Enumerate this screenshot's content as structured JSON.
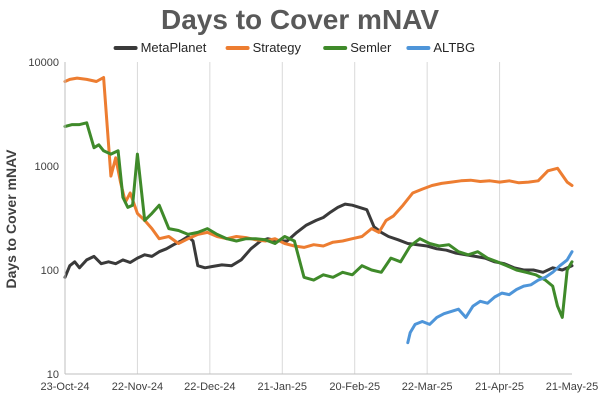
{
  "chart_data": {
    "type": "line",
    "title": "Days to Cover mNAV",
    "ylabel": "Days to Cover mNAV",
    "xlabel": "",
    "yscale": "log",
    "ylim": [
      10,
      10000
    ],
    "y_ticks": [
      "10",
      "100",
      "1000",
      "10000"
    ],
    "x_ticks": [
      "23-Oct-24",
      "22-Nov-24",
      "22-Dec-24",
      "21-Jan-25",
      "20-Feb-25",
      "22-Mar-25",
      "21-Apr-25",
      "21-May-25"
    ],
    "x_start": "2024-10-23",
    "x_end": "2025-05-21",
    "grid": "vertical",
    "legend_position": "top",
    "series": [
      {
        "name": "MetaPlanet",
        "color": "#3a3a3a",
        "x": [
          "2024-10-23",
          "2024-10-25",
          "2024-10-27",
          "2024-10-29",
          "2024-11-01",
          "2024-11-04",
          "2024-11-07",
          "2024-11-10",
          "2024-11-13",
          "2024-11-16",
          "2024-11-19",
          "2024-11-22",
          "2024-11-25",
          "2024-11-28",
          "2024-12-01",
          "2024-12-04",
          "2024-12-07",
          "2024-12-10",
          "2024-12-13",
          "2024-12-15",
          "2024-12-17",
          "2024-12-20",
          "2024-12-23",
          "2024-12-27",
          "2024-12-31",
          "2025-01-04",
          "2025-01-08",
          "2025-01-12",
          "2025-01-15",
          "2025-01-19",
          "2025-01-23",
          "2025-01-27",
          "2025-01-31",
          "2025-02-04",
          "2025-02-07",
          "2025-02-10",
          "2025-02-13",
          "2025-02-16",
          "2025-02-19",
          "2025-02-22",
          "2025-02-25",
          "2025-02-28",
          "2025-03-03",
          "2025-03-06",
          "2025-03-10",
          "2025-03-14",
          "2025-03-18",
          "2025-03-22",
          "2025-03-26",
          "2025-03-30",
          "2025-04-03",
          "2025-04-07",
          "2025-04-11",
          "2025-04-15",
          "2025-04-19",
          "2025-04-23",
          "2025-04-27",
          "2025-05-01",
          "2025-05-05",
          "2025-05-09",
          "2025-05-13",
          "2025-05-17",
          "2025-05-21"
        ],
        "values": [
          85,
          110,
          120,
          105,
          125,
          135,
          115,
          120,
          115,
          125,
          118,
          130,
          140,
          135,
          150,
          160,
          175,
          190,
          210,
          190,
          110,
          105,
          108,
          112,
          110,
          125,
          160,
          190,
          200,
          190,
          190,
          230,
          270,
          300,
          320,
          360,
          400,
          430,
          420,
          400,
          380,
          260,
          230,
          210,
          195,
          180,
          175,
          170,
          160,
          155,
          145,
          140,
          135,
          130,
          120,
          115,
          105,
          100,
          100,
          95,
          105,
          100,
          110
        ]
      },
      {
        "name": "Strategy",
        "color": "#ed7d31",
        "x": [
          "2024-10-23",
          "2024-10-25",
          "2024-10-28",
          "2024-11-01",
          "2024-11-05",
          "2024-11-08",
          "2024-11-11",
          "2024-11-13",
          "2024-11-15",
          "2024-11-17",
          "2024-11-19",
          "2024-11-22",
          "2024-11-25",
          "2024-11-28",
          "2024-12-01",
          "2024-12-05",
          "2024-12-09",
          "2024-12-13",
          "2024-12-17",
          "2024-12-21",
          "2024-12-25",
          "2024-12-29",
          "2025-01-02",
          "2025-01-06",
          "2025-01-10",
          "2025-01-14",
          "2025-01-18",
          "2025-01-22",
          "2025-01-26",
          "2025-01-30",
          "2025-02-03",
          "2025-02-07",
          "2025-02-11",
          "2025-02-15",
          "2025-02-19",
          "2025-02-23",
          "2025-02-27",
          "2025-03-02",
          "2025-03-05",
          "2025-03-08",
          "2025-03-12",
          "2025-03-16",
          "2025-03-20",
          "2025-03-24",
          "2025-03-28",
          "2025-04-01",
          "2025-04-05",
          "2025-04-09",
          "2025-04-13",
          "2025-04-17",
          "2025-04-21",
          "2025-04-25",
          "2025-04-29",
          "2025-05-03",
          "2025-05-07",
          "2025-05-11",
          "2025-05-15",
          "2025-05-19",
          "2025-05-21"
        ],
        "values": [
          6500,
          6800,
          7000,
          6800,
          6500,
          7100,
          800,
          1200,
          700,
          450,
          550,
          350,
          300,
          250,
          200,
          210,
          180,
          200,
          220,
          230,
          210,
          200,
          210,
          205,
          195,
          190,
          200,
          180,
          170,
          165,
          175,
          170,
          185,
          190,
          200,
          210,
          250,
          230,
          300,
          330,
          420,
          550,
          600,
          650,
          680,
          700,
          720,
          730,
          710,
          720,
          700,
          720,
          690,
          700,
          720,
          900,
          950,
          700,
          650
        ]
      },
      {
        "name": "Semler",
        "color": "#3f8a2a",
        "x": [
          "2024-10-23",
          "2024-10-26",
          "2024-10-29",
          "2024-11-01",
          "2024-11-04",
          "2024-11-06",
          "2024-11-08",
          "2024-11-11",
          "2024-11-14",
          "2024-11-16",
          "2024-11-18",
          "2024-11-20",
          "2024-11-22",
          "2024-11-25",
          "2024-11-28",
          "2024-12-01",
          "2024-12-05",
          "2024-12-09",
          "2024-12-13",
          "2024-12-17",
          "2024-12-21",
          "2024-12-25",
          "2024-12-29",
          "2025-01-02",
          "2025-01-06",
          "2025-01-10",
          "2025-01-14",
          "2025-01-18",
          "2025-01-22",
          "2025-01-26",
          "2025-01-30",
          "2025-02-03",
          "2025-02-07",
          "2025-02-11",
          "2025-02-15",
          "2025-02-19",
          "2025-02-23",
          "2025-02-27",
          "2025-03-03",
          "2025-03-07",
          "2025-03-11",
          "2025-03-15",
          "2025-03-19",
          "2025-03-23",
          "2025-03-27",
          "2025-03-31",
          "2025-04-04",
          "2025-04-08",
          "2025-04-12",
          "2025-04-16",
          "2025-04-20",
          "2025-04-24",
          "2025-04-28",
          "2025-05-02",
          "2025-05-06",
          "2025-05-10",
          "2025-05-13",
          "2025-05-15",
          "2025-05-17",
          "2025-05-19",
          "2025-05-21"
        ],
        "values": [
          2400,
          2500,
          2500,
          2600,
          1500,
          1600,
          1400,
          1300,
          1400,
          500,
          400,
          420,
          1300,
          300,
          350,
          420,
          250,
          240,
          220,
          230,
          250,
          220,
          200,
          190,
          200,
          200,
          195,
          180,
          210,
          190,
          85,
          80,
          90,
          85,
          95,
          90,
          110,
          100,
          95,
          130,
          120,
          170,
          200,
          180,
          170,
          175,
          150,
          140,
          150,
          130,
          120,
          110,
          100,
          95,
          90,
          80,
          70,
          45,
          35,
          100,
          120
        ]
      },
      {
        "name": "ALTBG",
        "color": "#4e95d9",
        "x": [
          "2025-03-14",
          "2025-03-15",
          "2025-03-17",
          "2025-03-20",
          "2025-03-23",
          "2025-03-26",
          "2025-03-29",
          "2025-04-01",
          "2025-04-04",
          "2025-04-07",
          "2025-04-10",
          "2025-04-13",
          "2025-04-16",
          "2025-04-19",
          "2025-04-22",
          "2025-04-25",
          "2025-04-28",
          "2025-05-01",
          "2025-05-04",
          "2025-05-07",
          "2025-05-10",
          "2025-05-13",
          "2025-05-16",
          "2025-05-19",
          "2025-05-21"
        ],
        "values": [
          20,
          25,
          30,
          32,
          30,
          35,
          38,
          40,
          42,
          35,
          45,
          50,
          48,
          55,
          60,
          58,
          65,
          70,
          72,
          80,
          85,
          95,
          110,
          125,
          150
        ]
      }
    ]
  }
}
